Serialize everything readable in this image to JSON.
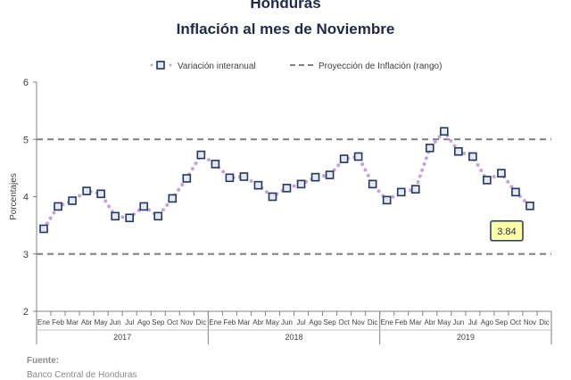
{
  "chart_data": {
    "type": "line",
    "title": "Honduras",
    "subtitle": "Inflación al mes de Noviembre",
    "ylabel": "Porcentajes",
    "xlabel": "",
    "ylim": [
      2,
      6
    ],
    "yticks": [
      2,
      3,
      4,
      5,
      6
    ],
    "legend_position": "top",
    "months": [
      "Ene",
      "Feb",
      "Mar",
      "Abr",
      "May",
      "Jun",
      "Jul",
      "Ago",
      "Sep",
      "Oct",
      "Nov",
      "Dic"
    ],
    "years": [
      "2017",
      "2018",
      "2019"
    ],
    "series": [
      {
        "name": "Variación interanual",
        "color": "#c5a3d9",
        "marker_color": "#1f3864",
        "values": [
          3.44,
          3.83,
          3.93,
          4.1,
          4.05,
          3.66,
          3.63,
          3.83,
          3.66,
          3.97,
          4.32,
          4.73,
          4.57,
          4.33,
          4.35,
          4.2,
          4.0,
          4.15,
          4.22,
          4.34,
          4.38,
          4.66,
          4.7,
          4.22,
          3.94,
          4.08,
          4.13,
          4.85,
          5.14,
          4.79,
          4.7,
          4.29,
          4.41,
          4.08,
          3.84
        ]
      },
      {
        "name": "Proyección de Inflación (rango)",
        "color": "#7f7f7f",
        "values": [
          3,
          5
        ]
      }
    ],
    "annotation": "3.84"
  },
  "source": {
    "heading": "Fuente:",
    "text": "Banco Central de Honduras"
  }
}
